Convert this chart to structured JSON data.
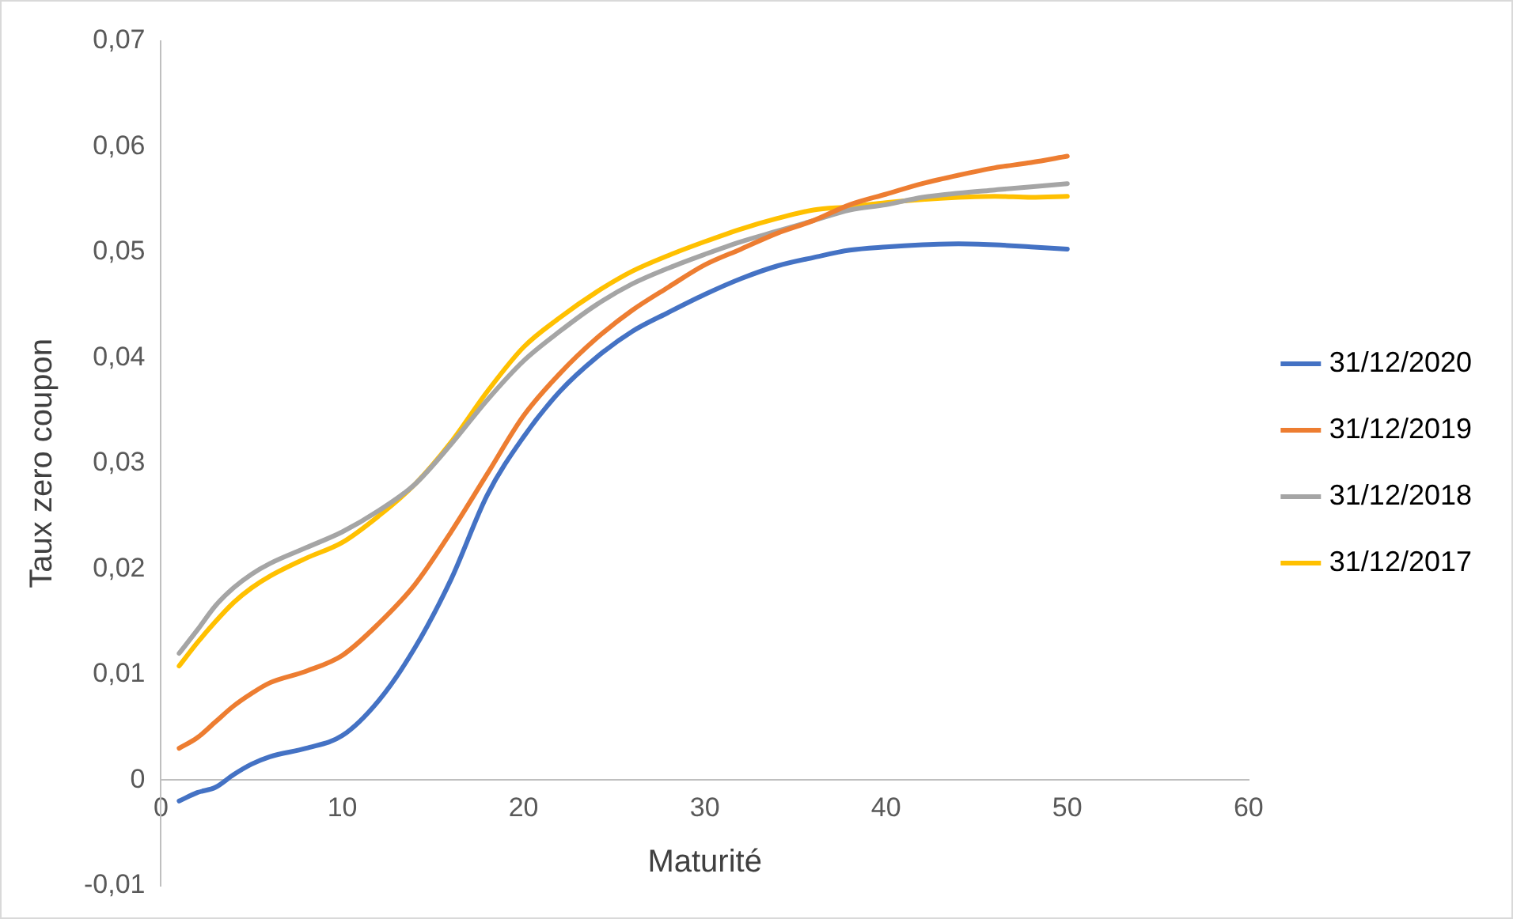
{
  "chart_data": {
    "type": "line",
    "xlabel": "Maturité",
    "ylabel": "Taux zero coupon",
    "x": [
      1,
      2,
      3,
      4,
      5,
      6,
      8,
      10,
      12,
      14,
      16,
      18,
      20,
      22,
      24,
      26,
      28,
      30,
      32,
      34,
      36,
      38,
      40,
      42,
      44,
      46,
      48,
      50
    ],
    "series": [
      {
        "name": "31/12/2020",
        "color": "#4472c4",
        "values": [
          -0.002,
          -0.0012,
          -0.0007,
          0.0005,
          0.0015,
          0.0022,
          0.003,
          0.0042,
          0.0075,
          0.0125,
          0.019,
          0.027,
          0.0325,
          0.0368,
          0.04,
          0.0425,
          0.0443,
          0.046,
          0.0475,
          0.0487,
          0.0495,
          0.0502,
          0.0505,
          0.0507,
          0.0508,
          0.0507,
          0.0505,
          0.0503
        ]
      },
      {
        "name": "31/12/2019",
        "color": "#ed7d31",
        "values": [
          0.003,
          0.004,
          0.0055,
          0.007,
          0.0082,
          0.0092,
          0.0103,
          0.0118,
          0.0148,
          0.0185,
          0.0235,
          0.029,
          0.0345,
          0.0385,
          0.0418,
          0.0445,
          0.0467,
          0.0488,
          0.0503,
          0.0518,
          0.053,
          0.0545,
          0.0555,
          0.0565,
          0.0573,
          0.058,
          0.0585,
          0.0591
        ]
      },
      {
        "name": "31/12/2018",
        "color": "#a5a5a5",
        "values": [
          0.012,
          0.0142,
          0.0165,
          0.0182,
          0.0195,
          0.0205,
          0.022,
          0.0235,
          0.0255,
          0.028,
          0.0318,
          0.036,
          0.0397,
          0.0425,
          0.045,
          0.047,
          0.0485,
          0.0498,
          0.051,
          0.052,
          0.053,
          0.054,
          0.0545,
          0.0552,
          0.0556,
          0.0559,
          0.0562,
          0.0565
        ]
      },
      {
        "name": "31/12/2017",
        "color": "#ffc000",
        "values": [
          0.0108,
          0.013,
          0.015,
          0.0168,
          0.0182,
          0.0193,
          0.021,
          0.0225,
          0.025,
          0.028,
          0.032,
          0.0368,
          0.041,
          0.0438,
          0.0462,
          0.0482,
          0.0497,
          0.051,
          0.0522,
          0.0532,
          0.054,
          0.0543,
          0.0547,
          0.055,
          0.0552,
          0.0553,
          0.0552,
          0.0553
        ]
      }
    ],
    "xlim": [
      0,
      60
    ],
    "xticks": [
      0,
      10,
      20,
      30,
      40,
      50,
      60
    ],
    "ylim": [
      -0.01,
      0.07
    ],
    "yticks": [
      {
        "value": -0.01,
        "label": "-0,01"
      },
      {
        "value": 0,
        "label": "0"
      },
      {
        "value": 0.01,
        "label": "0,01"
      },
      {
        "value": 0.02,
        "label": "0,02"
      },
      {
        "value": 0.03,
        "label": "0,03"
      },
      {
        "value": 0.04,
        "label": "0,04"
      },
      {
        "value": 0.05,
        "label": "0,05"
      },
      {
        "value": 0.06,
        "label": "0,06"
      },
      {
        "value": 0.07,
        "label": "0,07"
      }
    ],
    "grid": false,
    "legend": "right",
    "marker": "none",
    "line_style": "solid"
  }
}
